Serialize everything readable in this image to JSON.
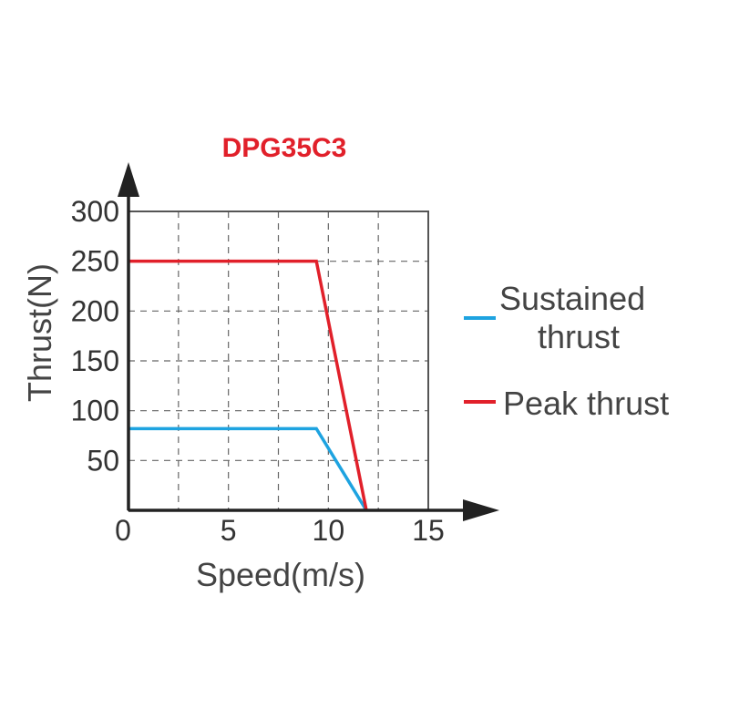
{
  "chart_data": {
    "type": "line",
    "title": "DPG35C3",
    "xlabel": "Speed(m/s)",
    "ylabel": "Thrust(N)",
    "xlim": [
      0,
      15
    ],
    "ylim": [
      0,
      300
    ],
    "xticks": [
      0,
      5,
      10,
      15
    ],
    "yticks": [
      50,
      100,
      150,
      200,
      250,
      300
    ],
    "grid": true,
    "legend_position": "right",
    "series": [
      {
        "name": "Sustained thrust",
        "legend_lines": [
          "Sustained",
          "thrust"
        ],
        "color": "#1ea3e0",
        "x": [
          0,
          9.4,
          11.9
        ],
        "y": [
          82,
          82,
          0
        ]
      },
      {
        "name": "Peak thrust",
        "legend_lines": [
          "Peak thrust"
        ],
        "color": "#e1202a",
        "x": [
          0,
          9.4,
          11.9
        ],
        "y": [
          250,
          250,
          0
        ]
      }
    ],
    "title_color": "#e1202a",
    "axis_color": "#222222"
  }
}
